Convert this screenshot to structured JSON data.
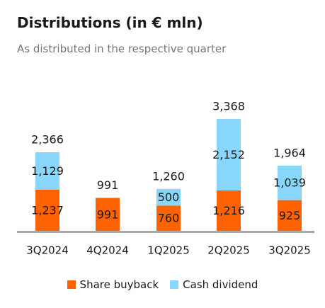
{
  "header": {
    "title": "Distributions (in € mln)",
    "subtitle": "As distributed in the respective quarter"
  },
  "colors": {
    "share_buyback": "#ff6200",
    "cash_dividend": "#89d6fd",
    "baseline": "#a8a8a8",
    "text": "#1a1a1a"
  },
  "chart_data": {
    "type": "bar",
    "stacked": true,
    "categories": [
      "3Q2024",
      "4Q2024",
      "1Q2025",
      "2Q2025",
      "3Q2025"
    ],
    "series": [
      {
        "name": "Share buyback",
        "values": [
          1237,
          991,
          760,
          1216,
          925
        ]
      },
      {
        "name": "Cash dividend",
        "values": [
          1129,
          0,
          500,
          2152,
          1039
        ]
      }
    ],
    "value_labels": [
      [
        "1,237",
        "991",
        "760",
        "1,216",
        "925"
      ],
      [
        "1,129",
        "",
        "500",
        "2,152",
        "1,039"
      ]
    ],
    "totals": [
      "2,366",
      "991",
      "1,260",
      "3,368",
      "1,964"
    ],
    "ylim": [
      0,
      3368
    ],
    "legend_position": "bottom",
    "grid": false
  }
}
